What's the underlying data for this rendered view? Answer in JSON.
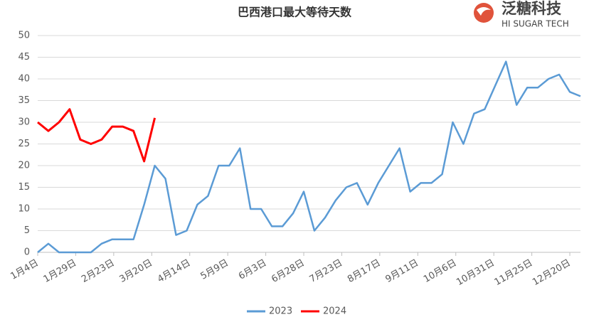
{
  "chart_data": {
    "type": "line",
    "title": "巴西港口最大等待天数",
    "x": [
      0,
      7,
      14,
      21,
      28,
      35,
      42,
      49,
      56,
      63,
      70,
      77,
      84,
      91,
      98,
      105,
      112,
      119,
      126,
      133,
      140,
      147,
      154,
      161,
      168,
      175,
      182,
      189,
      196,
      203,
      210,
      217,
      224,
      231,
      238,
      245,
      252,
      259,
      266,
      273,
      280,
      287,
      294,
      301,
      308,
      315,
      322,
      329,
      336,
      343,
      350,
      357
    ],
    "xlim": [
      0,
      357
    ],
    "xticks": [
      {
        "value": 0,
        "label": "1月4日"
      },
      {
        "value": 25,
        "label": "1月29日"
      },
      {
        "value": 50,
        "label": "2月23日"
      },
      {
        "value": 75,
        "label": "3月20日"
      },
      {
        "value": 100,
        "label": "4月14日"
      },
      {
        "value": 125,
        "label": "5月9日"
      },
      {
        "value": 150,
        "label": "6月3日"
      },
      {
        "value": 175,
        "label": "6月28日"
      },
      {
        "value": 200,
        "label": "7月23日"
      },
      {
        "value": 225,
        "label": "8月17日"
      },
      {
        "value": 250,
        "label": "9月11日"
      },
      {
        "value": 275,
        "label": "10月6日"
      },
      {
        "value": 300,
        "label": "10月31日"
      },
      {
        "value": 325,
        "label": "11月25日"
      },
      {
        "value": 350,
        "label": "12月20日"
      }
    ],
    "ylim": [
      0,
      50
    ],
    "yticks": [
      0,
      5,
      10,
      15,
      20,
      25,
      30,
      35,
      40,
      45,
      50
    ],
    "grid": true,
    "series": [
      {
        "name": "2023",
        "color": "#5b9bd5",
        "values": [
          0,
          2,
          0,
          0,
          0,
          0,
          2,
          3,
          3,
          3,
          11,
          20,
          17,
          4,
          5,
          11,
          13,
          20,
          20,
          24,
          10,
          10,
          6,
          6,
          9,
          14,
          5,
          8,
          12,
          15,
          16,
          11,
          16,
          20,
          24,
          14,
          16,
          16,
          18,
          30,
          25,
          32,
          33,
          38.5,
          44,
          34,
          38,
          38,
          40,
          41,
          37,
          36
        ]
      },
      {
        "name": "2024",
        "color": "#ff0000",
        "values": [
          30,
          28,
          30,
          33,
          26,
          25,
          26,
          29,
          29,
          28,
          21,
          31,
          null,
          null,
          null,
          null,
          null,
          null,
          null,
          null,
          null,
          null,
          null,
          null,
          null,
          null,
          null,
          null,
          null,
          null,
          null,
          null,
          null,
          null,
          null,
          null,
          null,
          null,
          null,
          null,
          null,
          null,
          null,
          null,
          null,
          null,
          null,
          null,
          null,
          null,
          null,
          null
        ]
      }
    ]
  },
  "logo": {
    "name": "泛糖科技",
    "subtitle": "HI SUGAR TECH"
  }
}
